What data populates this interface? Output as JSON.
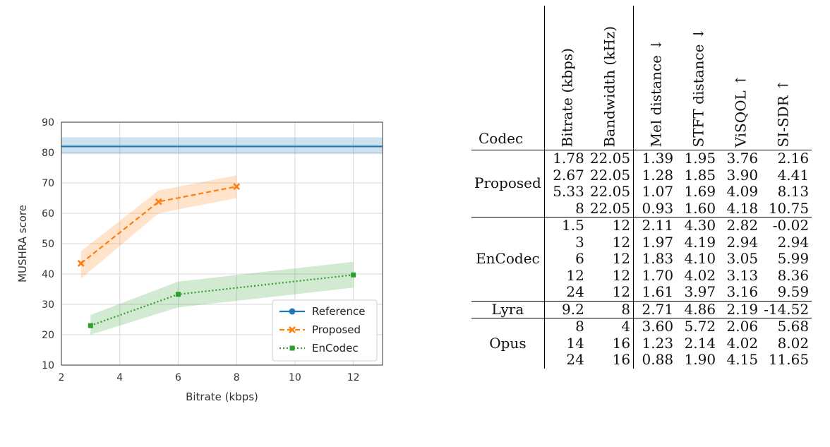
{
  "chart_data": [
    {
      "type": "line",
      "title": "",
      "xlabel": "Bitrate (kbps)",
      "ylabel": "MUSHRA score",
      "xlim": [
        2,
        13
      ],
      "ylim": [
        10,
        90
      ],
      "xticks": [
        2,
        4,
        6,
        8,
        10,
        12
      ],
      "yticks": [
        10,
        20,
        30,
        40,
        50,
        60,
        70,
        80,
        90
      ],
      "grid": true,
      "legend": "bottom-right",
      "series": [
        {
          "name": "Reference",
          "color": "#1f77b4",
          "style": "solid",
          "marker": "circle",
          "x": [
            2,
            13
          ],
          "y": [
            82,
            82
          ],
          "ci_low": [
            79.5,
            79.5
          ],
          "ci_high": [
            85,
            85
          ]
        },
        {
          "name": "Proposed",
          "color": "#ff7f0e",
          "style": "dashed",
          "marker": "x",
          "x": [
            2.67,
            5.33,
            8
          ],
          "y": [
            43.5,
            63.8,
            68.8
          ],
          "ci_low": [
            38.5,
            60,
            65
          ],
          "ci_high": [
            47.5,
            67.5,
            72.5
          ]
        },
        {
          "name": "EnCodec",
          "color": "#2ca02c",
          "style": "dotted",
          "marker": "square",
          "x": [
            3,
            6,
            12
          ],
          "y": [
            23,
            33.3,
            39.7
          ],
          "ci_low": [
            20,
            29,
            35.5
          ],
          "ci_high": [
            26.5,
            37.5,
            44
          ]
        }
      ]
    },
    {
      "type": "table",
      "columns": [
        "Codec",
        "Bitrate (kbps)",
        "Bandwidth (kHz)",
        "Mel distance ↓",
        "STFT distance ↓",
        "ViSQOL ↑",
        "SI-SDR ↑"
      ],
      "groups": [
        {
          "codec": "Proposed",
          "rows": [
            [
              "1.78",
              "22.05",
              "1.39",
              "1.95",
              "3.76",
              "2.16"
            ],
            [
              "2.67",
              "22.05",
              "1.28",
              "1.85",
              "3.90",
              "4.41"
            ],
            [
              "5.33",
              "22.05",
              "1.07",
              "1.69",
              "4.09",
              "8.13"
            ],
            [
              "8",
              "22.05",
              "0.93",
              "1.60",
              "4.18",
              "10.75"
            ]
          ]
        },
        {
          "codec": "EnCodec",
          "rows": [
            [
              "1.5",
              "12",
              "2.11",
              "4.30",
              "2.82",
              "-0.02"
            ],
            [
              "3",
              "12",
              "1.97",
              "4.19",
              "2.94",
              "2.94"
            ],
            [
              "6",
              "12",
              "1.83",
              "4.10",
              "3.05",
              "5.99"
            ],
            [
              "12",
              "12",
              "1.70",
              "4.02",
              "3.13",
              "8.36"
            ],
            [
              "24",
              "12",
              "1.61",
              "3.97",
              "3.16",
              "9.59"
            ]
          ]
        },
        {
          "codec": "Lyra",
          "rows": [
            [
              "9.2",
              "8",
              "2.71",
              "4.86",
              "2.19",
              "-14.52"
            ]
          ]
        },
        {
          "codec": "Opus",
          "rows": [
            [
              "8",
              "4",
              "3.60",
              "5.72",
              "2.06",
              "5.68"
            ],
            [
              "14",
              "16",
              "1.23",
              "2.14",
              "4.02",
              "8.02"
            ],
            [
              "24",
              "16",
              "0.88",
              "1.90",
              "4.15",
              "11.65"
            ]
          ]
        }
      ]
    }
  ]
}
